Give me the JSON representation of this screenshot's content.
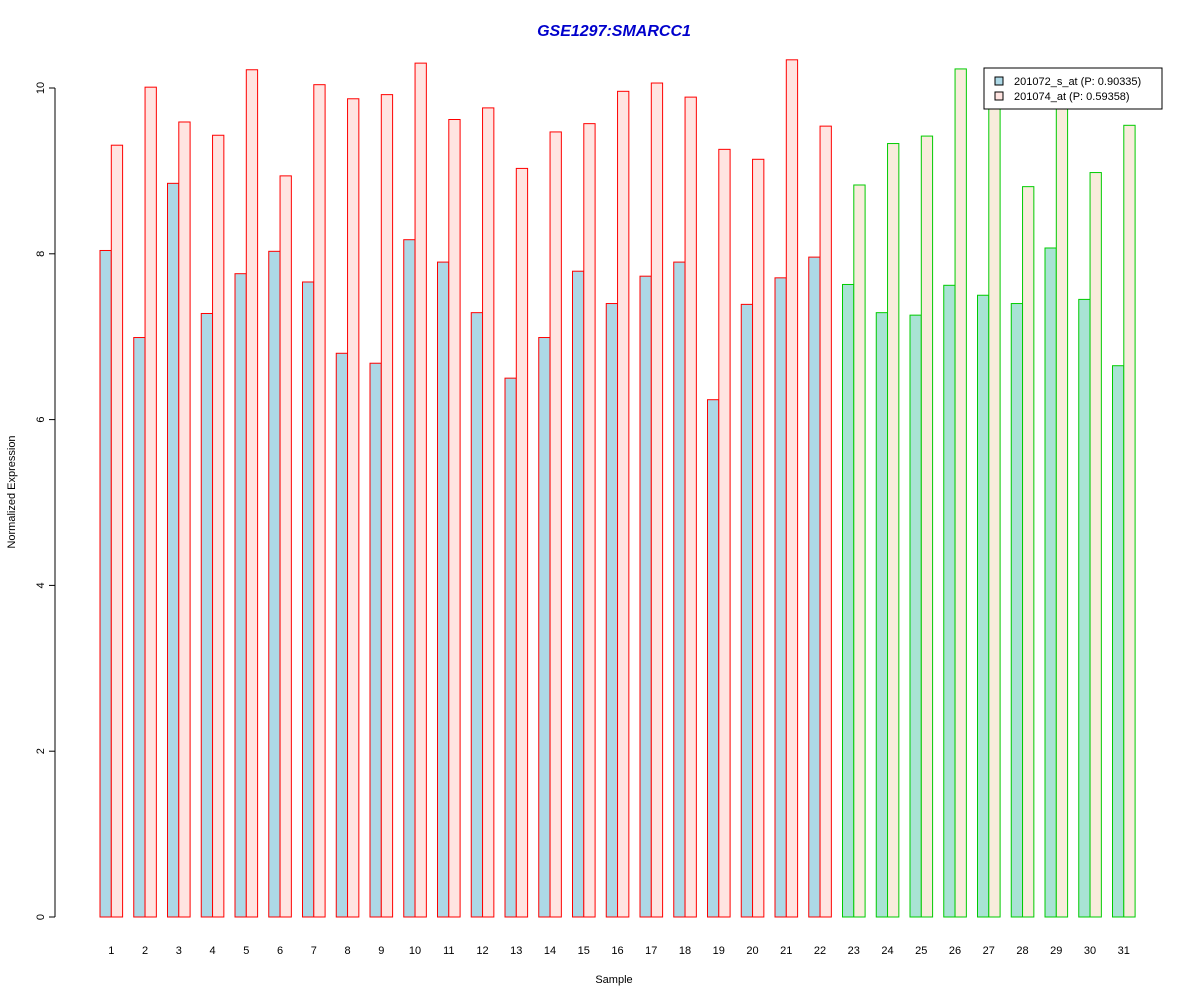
{
  "chart_data": {
    "type": "bar",
    "title": "GSE1297:SMARCC1",
    "xlabel": "Sample",
    "ylabel": "Normalized Expression",
    "ylim": [
      0,
      10.5
    ],
    "yticks": [
      0,
      2,
      4,
      6,
      8,
      10
    ],
    "categories": [
      "1",
      "2",
      "3",
      "4",
      "5",
      "6",
      "7",
      "8",
      "9",
      "10",
      "11",
      "12",
      "13",
      "14",
      "15",
      "16",
      "17",
      "18",
      "19",
      "20",
      "21",
      "22",
      "23",
      "24",
      "25",
      "26",
      "27",
      "28",
      "29",
      "30",
      "31"
    ],
    "series": [
      {
        "name": "201072_s_at (P: 0.90335)",
        "values": [
          8.04,
          6.99,
          8.85,
          7.28,
          7.76,
          8.03,
          7.66,
          6.8,
          6.68,
          8.17,
          7.9,
          7.29,
          6.5,
          6.99,
          7.79,
          7.4,
          7.73,
          7.9,
          6.24,
          7.39,
          7.71,
          7.96,
          7.63,
          7.29,
          7.26,
          7.62,
          7.5,
          7.4,
          8.07,
          7.45,
          6.65
        ]
      },
      {
        "name": "201074_at (P: 0.59358)",
        "values": [
          9.31,
          10.01,
          9.59,
          9.43,
          10.22,
          8.94,
          10.04,
          9.87,
          9.92,
          10.3,
          9.62,
          9.76,
          9.03,
          9.47,
          9.57,
          9.96,
          10.06,
          9.89,
          9.26,
          9.14,
          10.34,
          9.54,
          8.83,
          9.33,
          9.42,
          10.23,
          9.78,
          8.81,
          9.76,
          8.98,
          9.55
        ]
      }
    ],
    "group_count_first": 22,
    "colors": {
      "fill_series1": "#add8e6",
      "fill_series2": "#ffe4e1",
      "fill_series1_group2": "#a8e3d4",
      "fill_series2_group2": "#f8ecdc",
      "border_group1": "#ff0000",
      "border_group2": "#00cc00",
      "title": "#0000cc"
    },
    "legend_position": "top-right",
    "grid": false
  }
}
